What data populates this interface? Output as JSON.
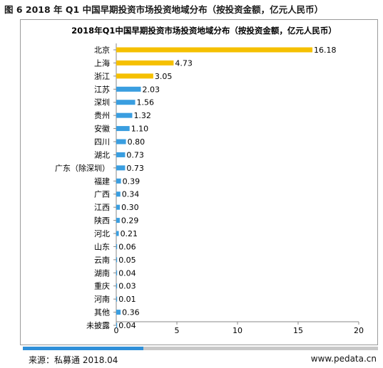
{
  "caption": "图 6 2018 年 Q1 中国早期投资市场投资地域分布（按投资金额，亿元人民币）",
  "footer": {
    "source": "来源：私募通 2018.04",
    "site": "www.pedata.cn",
    "bar_progress": 0.34
  },
  "colors": {
    "highlight": "#f5c000",
    "bar": "#3a9ee0",
    "accent": "#2f8fd8"
  },
  "chart_data": {
    "type": "bar",
    "orientation": "horizontal",
    "title": "2018年Q1中国早期投资市场投资地域分布（按投资金额，亿元人民币）",
    "categories": [
      "北京",
      "上海",
      "浙江",
      "江苏",
      "深圳",
      "贵州",
      "安徽",
      "四川",
      "湖北",
      "广东（除深圳）",
      "福建",
      "广西",
      "江西",
      "陕西",
      "河北",
      "山东",
      "云南",
      "湖南",
      "重庆",
      "河南",
      "其他",
      "未披露"
    ],
    "values": [
      16.18,
      4.73,
      3.05,
      2.03,
      1.56,
      1.32,
      1.1,
      0.8,
      0.73,
      0.73,
      0.39,
      0.34,
      0.3,
      0.29,
      0.21,
      0.06,
      0.05,
      0.04,
      0.03,
      0.01,
      0.36,
      0.04
    ],
    "value_labels": [
      "16.18",
      "4.73",
      "3.05",
      "2.03",
      "1.56",
      "1.32",
      "1.10",
      "0.80",
      "0.73",
      "0.73",
      "0.39",
      "0.34",
      "0.30",
      "0.29",
      "0.21",
      "0.06",
      "0.05",
      "0.04",
      "0.03",
      "0.01",
      "0.36",
      "0.04"
    ],
    "highlighted_count": 3,
    "xlim": [
      0,
      20
    ],
    "xticks": [
      0,
      5,
      10,
      15,
      20
    ],
    "xlabel": "",
    "ylabel": "",
    "grid": false,
    "legend": "none"
  }
}
